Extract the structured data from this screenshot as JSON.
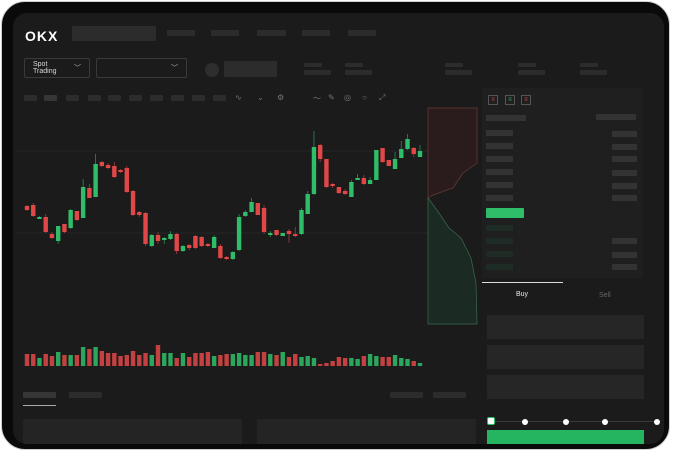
{
  "header": {
    "logo": "OKX",
    "nav_placeholders": 5
  },
  "toolbar": {
    "market_selector": "Spot Trading",
    "chevron": "chevron-down-icon"
  },
  "orderbook": {
    "view_icons": [
      "orderbook-both-icon",
      "orderbook-bids-icon",
      "orderbook-asks-icon"
    ]
  },
  "trade": {
    "tabs": [
      {
        "label": "Buy",
        "active": true
      },
      {
        "label": "Sell",
        "active": false
      }
    ],
    "slider_percent": 0,
    "submit_color": "#25b561"
  },
  "colors": {
    "up": "#2fbd69",
    "down": "#e04848",
    "background": "#1b1b1b"
  },
  "chart_data": {
    "type": "candlestick",
    "candles": [
      [
        96,
        97,
        91,
        92
      ],
      [
        97,
        99,
        85,
        86
      ],
      [
        83,
        86,
        83,
        85
      ],
      [
        85,
        88,
        69,
        70
      ],
      [
        68,
        70,
        63,
        64
      ],
      [
        61,
        76,
        58,
        76
      ],
      [
        78,
        78,
        69,
        70
      ],
      [
        74,
        93,
        73,
        92
      ],
      [
        91,
        91,
        81,
        82
      ],
      [
        84,
        123,
        84,
        115
      ],
      [
        114,
        118,
        104,
        104
      ],
      [
        105,
        148,
        105,
        138
      ],
      [
        140,
        141,
        135,
        136
      ],
      [
        137,
        139,
        133,
        134
      ],
      [
        136,
        140,
        124,
        125
      ],
      [
        132,
        133,
        129,
        130
      ],
      [
        134,
        136,
        109,
        110
      ],
      [
        111,
        112,
        86,
        87
      ],
      [
        90,
        91,
        85,
        87
      ],
      [
        89,
        90,
        56,
        58
      ],
      [
        56,
        68,
        55,
        67
      ],
      [
        67,
        70,
        58,
        61
      ],
      [
        62,
        65,
        58,
        64
      ],
      [
        63,
        71,
        62,
        68
      ],
      [
        68,
        69,
        48,
        51
      ],
      [
        51,
        57,
        50,
        56
      ],
      [
        57,
        58,
        52,
        54
      ],
      [
        66,
        67,
        53,
        54
      ],
      [
        65,
        66,
        55,
        56
      ],
      [
        58,
        59,
        55,
        56
      ],
      [
        54,
        67,
        54,
        65
      ],
      [
        56,
        58,
        43,
        44
      ],
      [
        45,
        46,
        42,
        43
      ],
      [
        43,
        51,
        42,
        50
      ],
      [
        52,
        88,
        51,
        85
      ],
      [
        86,
        92,
        85,
        90
      ],
      [
        90,
        104,
        90,
        100
      ],
      [
        99,
        99,
        87,
        87
      ],
      [
        94,
        97,
        68,
        70
      ],
      [
        67,
        71,
        65,
        69
      ],
      [
        72,
        72,
        66,
        67
      ],
      [
        66,
        69,
        66,
        69
      ],
      [
        71,
        73,
        59,
        68
      ],
      [
        68,
        75,
        65,
        67
      ],
      [
        68,
        94,
        67,
        92
      ],
      [
        88,
        111,
        88,
        108
      ],
      [
        108,
        171,
        107,
        155
      ],
      [
        157,
        158,
        140,
        143
      ],
      [
        143,
        143,
        114,
        115
      ],
      [
        118,
        119,
        114,
        116
      ],
      [
        115,
        115,
        108,
        109
      ],
      [
        111,
        113,
        107,
        108
      ],
      [
        105,
        122,
        105,
        120
      ],
      [
        122,
        128,
        122,
        124
      ],
      [
        124,
        127,
        117,
        118
      ],
      [
        118,
        125,
        118,
        122
      ],
      [
        122,
        152,
        122,
        152
      ],
      [
        154,
        154,
        139,
        140
      ],
      [
        142,
        142,
        136,
        136
      ],
      [
        133,
        150,
        133,
        143
      ],
      [
        144,
        161,
        144,
        153
      ],
      [
        153,
        168,
        152,
        163
      ],
      [
        154,
        155,
        145,
        148
      ],
      [
        145,
        157,
        145,
        151
      ]
    ],
    "volumes": [
      12,
      12,
      8,
      12,
      10,
      14,
      11,
      11,
      11,
      19,
      17,
      19,
      15,
      13,
      13,
      10,
      11,
      15,
      11,
      13,
      11,
      21,
      13,
      13,
      8,
      13,
      9,
      13,
      13,
      14,
      10,
      11,
      12,
      12,
      13,
      11,
      11,
      14,
      14,
      12,
      11,
      14,
      9,
      12,
      9,
      10,
      8,
      2,
      3,
      5,
      9,
      8,
      8,
      7,
      10,
      12,
      10,
      9,
      9,
      11,
      8,
      7,
      5,
      3
    ]
  }
}
